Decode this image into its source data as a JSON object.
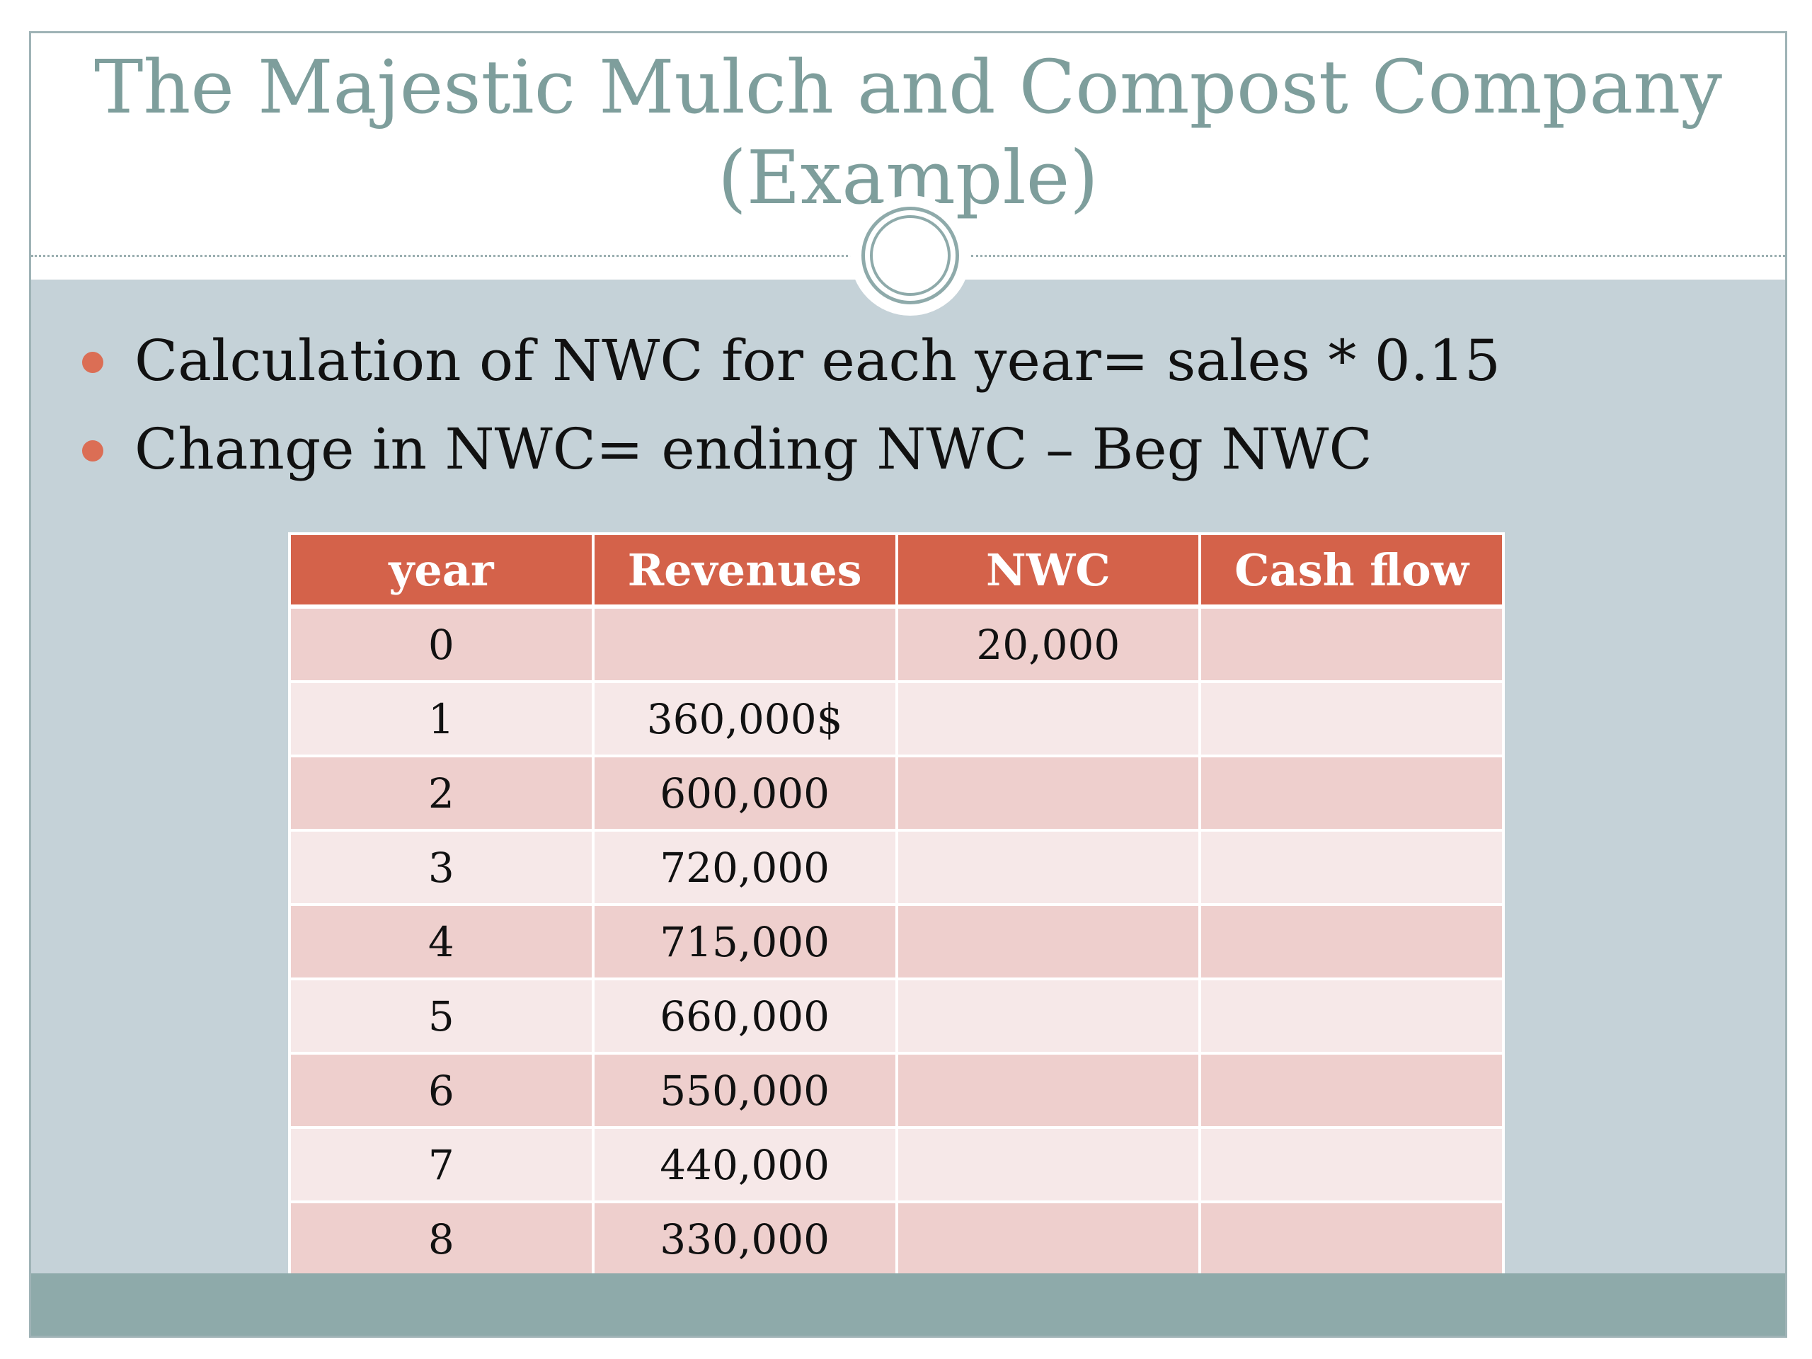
{
  "slide": {
    "title_line1": "The Majestic Mulch and Compost Company",
    "title_line2": "(Example)",
    "bullets": [
      "Calculation of NWC for each year= sales * 0.15",
      "Change in NWC= ending NWC – Beg NWC"
    ],
    "bullet_color": "#db6e55",
    "accent_color": "#d4624a",
    "title_color": "#7e9e9c"
  },
  "table": {
    "headers": [
      "year",
      "Revenues",
      "NWC",
      "Cash flow"
    ],
    "rows": [
      [
        "0",
        "",
        "20,000",
        ""
      ],
      [
        "1",
        "360,000$",
        "",
        ""
      ],
      [
        "2",
        "600,000",
        "",
        ""
      ],
      [
        "3",
        "720,000",
        "",
        ""
      ],
      [
        "4",
        "715,000",
        "",
        ""
      ],
      [
        "5",
        "660,000",
        "",
        ""
      ],
      [
        "6",
        "550,000",
        "",
        ""
      ],
      [
        "7",
        "440,000",
        "",
        ""
      ],
      [
        "8",
        "330,000",
        "",
        ""
      ]
    ]
  }
}
